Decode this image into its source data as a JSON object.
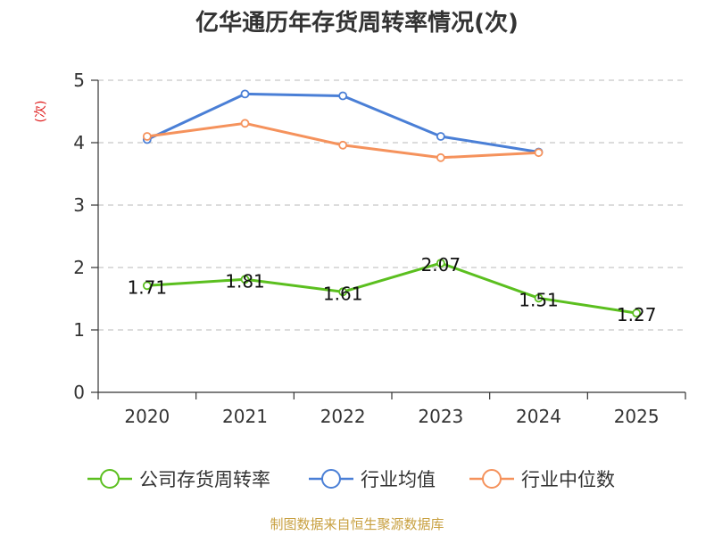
{
  "chart_data": {
    "type": "line",
    "title": "亿华通历年存货周转率情况(次)",
    "ylabel": "(次)",
    "xlabel": "",
    "categories": [
      "2020",
      "2021",
      "2022",
      "2023",
      "2024",
      "2025"
    ],
    "y_ticks": [
      "0",
      "1",
      "2",
      "3",
      "4",
      "5"
    ],
    "ylim": [
      0,
      5
    ],
    "grid": "horizontal dashed",
    "legend_position": "bottom",
    "series": [
      {
        "name": "公司存货周转率",
        "color": "#5bbf1f",
        "values": [
          1.71,
          1.81,
          1.61,
          2.07,
          1.51,
          1.27
        ],
        "labels": [
          "1.71",
          "1.81",
          "1.61",
          "2.07",
          "1.51",
          "1.27"
        ]
      },
      {
        "name": "行业均值",
        "color": "#4a7fd6",
        "values": [
          4.05,
          4.78,
          4.75,
          4.1,
          3.85,
          null
        ]
      },
      {
        "name": "行业中位数",
        "color": "#f5925c",
        "values": [
          4.1,
          4.31,
          3.96,
          3.76,
          3.84,
          null
        ]
      }
    ],
    "source": "制图数据来自恒生聚源数据库"
  }
}
